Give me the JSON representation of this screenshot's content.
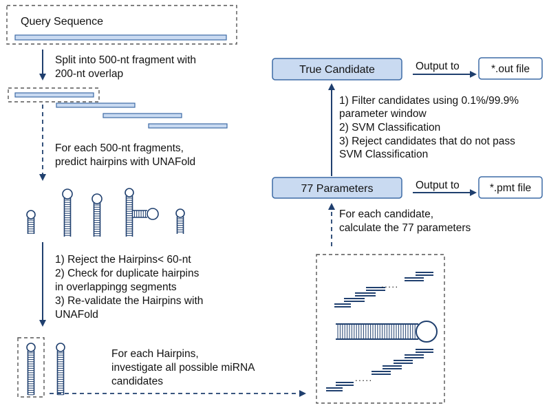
{
  "colors": {
    "box_fill": "#c9daf1",
    "box_stroke": "#3c6aa5",
    "arrow": "#1f3f6e",
    "dash": "#555555",
    "hairpin_loop_fill": "#ffffff"
  },
  "query": {
    "title": "Query Sequence"
  },
  "left": {
    "step1": [
      "Split into 500-nt fragment with",
      "200-nt overlap"
    ],
    "step2": [
      "For each 500-nt fragments,",
      "predict hairpins with UNAFold"
    ],
    "step3": [
      "1) Reject the Hairpins< 60-nt",
      "2) Check for duplicate hairpins",
      "in overlappingg segments",
      "3) Re-validate the Hairpins with",
      "UNAFold"
    ],
    "step4": [
      "For each Hairpins,",
      "investigate all possible miRNA",
      "candidates"
    ]
  },
  "right": {
    "true_candidate": "True Candidate",
    "params": "77 Parameters",
    "output_to_1": "Output to",
    "output_to_2": "Output to",
    "out_file": "*.out file",
    "pmt_file": "*.pmt file",
    "filter": [
      "1) Filter candidates using  0.1%/99.9%",
      "parameter window",
      "2) SVM Classification",
      "3) Reject candidates that do not pass",
      "SVM Classification"
    ],
    "each_candidate": [
      "For each candidate,",
      "calculate the 77 parameters"
    ],
    "dots": "....."
  }
}
